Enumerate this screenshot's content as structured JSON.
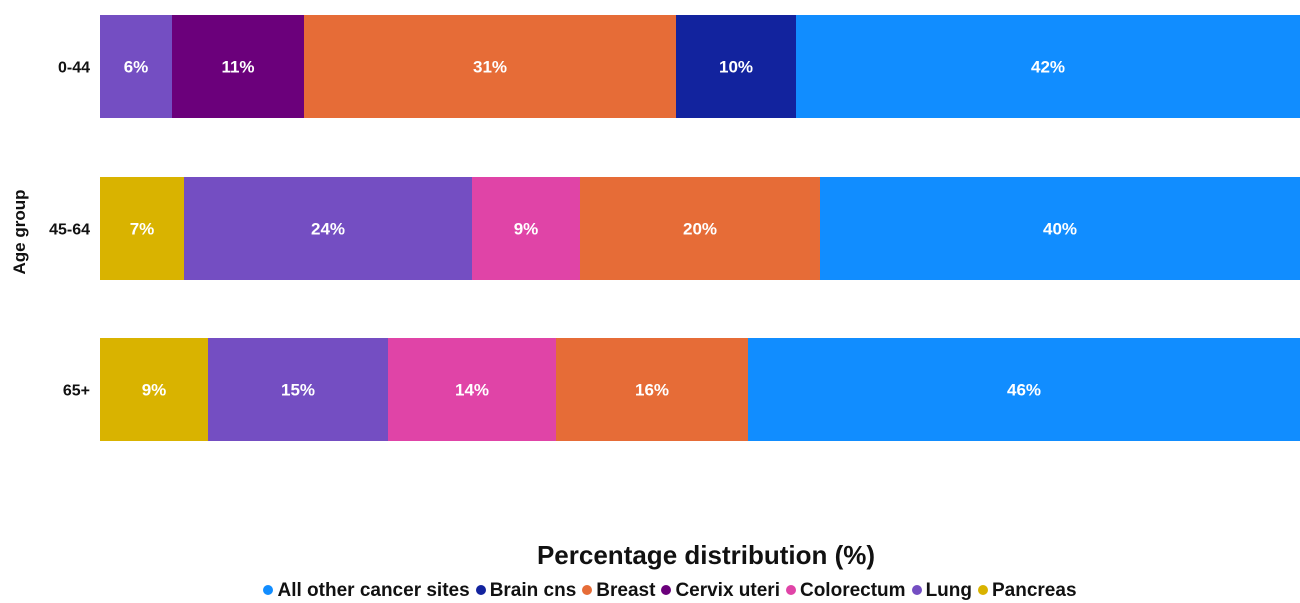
{
  "chart_data": {
    "type": "bar",
    "orientation": "horizontal",
    "stacked": true,
    "xlabel": "Percentage distribution (%)",
    "ylabel": "Age group",
    "xlim": [
      0,
      100
    ],
    "grid": false,
    "legend_position": "bottom",
    "categories": [
      "0-44",
      "45-64",
      "65+"
    ],
    "series_order": [
      "Pancreas",
      "Lung",
      "Cervix uteri",
      "Colorectum",
      "Breast",
      "Brain cns",
      "All other cancer sites"
    ],
    "series": [
      {
        "name": "All other cancer sites",
        "color": "#118DFF",
        "values": [
          42,
          40,
          46
        ]
      },
      {
        "name": "Brain cns",
        "color": "#12239E",
        "values": [
          10,
          null,
          null
        ]
      },
      {
        "name": "Breast",
        "color": "#E66C37",
        "values": [
          31,
          20,
          16
        ]
      },
      {
        "name": "Cervix uteri",
        "color": "#6B007B",
        "values": [
          11,
          null,
          null
        ]
      },
      {
        "name": "Colorectum",
        "color": "#E044A7",
        "values": [
          null,
          9,
          14
        ]
      },
      {
        "name": "Lung",
        "color": "#744EC2",
        "values": [
          6,
          24,
          15
        ]
      },
      {
        "name": "Pancreas",
        "color": "#D9B300",
        "values": [
          null,
          7,
          9
        ]
      }
    ],
    "value_suffix": "%"
  }
}
